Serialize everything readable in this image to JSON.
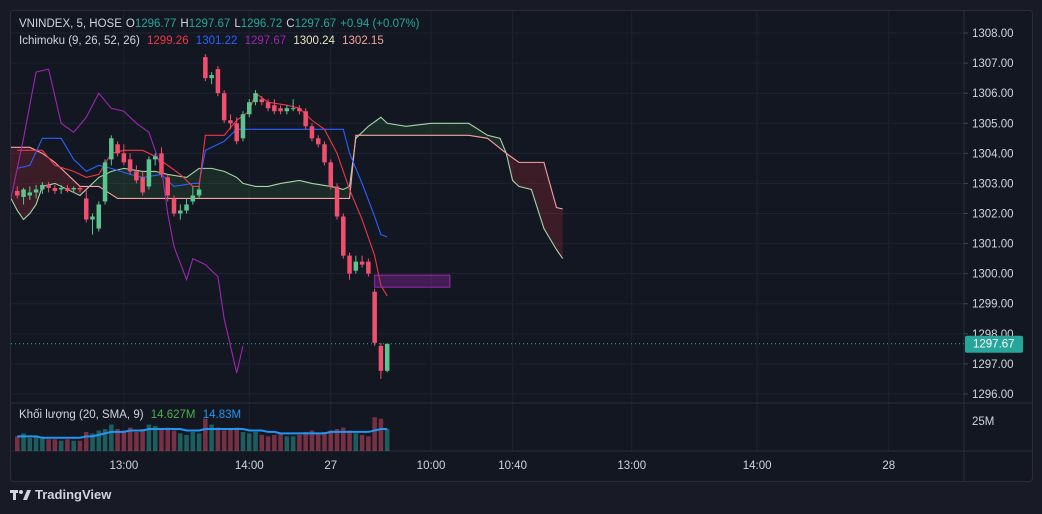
{
  "legend": {
    "symbol": "VNINDEX, 5, HOSE",
    "open_label": "O",
    "open": "1296.77",
    "high_label": "H",
    "high": "1297.67",
    "low_label": "L",
    "low": "1296.72",
    "close_label": "C",
    "close": "1297.67",
    "change": "+0.94 (+0.07%)"
  },
  "ichimoku_legend": {
    "name": "Ichimoku (9, 26, 52, 26)",
    "v1": "1299.26",
    "v2": "1301.22",
    "v3": "1297.67",
    "v4": "1300.24",
    "v5": "1302.15"
  },
  "volume_legend": {
    "name": "Khối lượng (20, SMA, 9)",
    "v1": "14.627M",
    "v2": "14.83M"
  },
  "footer": {
    "brand": "TradingView"
  },
  "colors": {
    "up": "#26a69a",
    "up_candle": "#5cc58f",
    "down": "#f0506e",
    "tenkan": "#f23645",
    "kijun": "#2962ff",
    "chikou": "#9c27b0",
    "senkou_a": "#a5d6a7",
    "senkou_b": "#f7a1a1",
    "zone": "#9c27b0"
  },
  "chart_data": {
    "type": "candlestick",
    "y_ticks": [
      1308,
      1307,
      1306,
      1305,
      1304,
      1303,
      1302,
      1301,
      1300,
      1299,
      1298,
      1297,
      1296
    ],
    "y_tick_labels": [
      "1308.00",
      "1307.00",
      "1306.00",
      "1305.00",
      "1304.00",
      "1303.00",
      "1302.00",
      "1301.00",
      "1300.00",
      "1299.00",
      "1298.00",
      "1297.00",
      "1296.00"
    ],
    "ylim": [
      1295.7,
      1308.4
    ],
    "x_range_bars": [
      -1,
      151
    ],
    "x_labels": [
      {
        "bar": 17,
        "label": "13:00"
      },
      {
        "bar": 37,
        "label": "14:00"
      },
      {
        "bar": 50,
        "label": "27"
      },
      {
        "bar": 66,
        "label": "10:00"
      },
      {
        "bar": 79,
        "label": "10:40"
      },
      {
        "bar": 98,
        "label": "13:00"
      },
      {
        "bar": 118,
        "label": "14:00"
      },
      {
        "bar": 139,
        "label": "28"
      }
    ],
    "last_price_label": "1297.67",
    "last_price": 1297.67,
    "volume_axis_label": "25M",
    "volume_max": 30,
    "candles": [
      {
        "o": 1302.75,
        "h": 1302.9,
        "l": 1302.5,
        "c": 1302.6,
        "v": 10
      },
      {
        "o": 1302.55,
        "h": 1302.85,
        "l": 1302.3,
        "c": 1302.8,
        "v": 12
      },
      {
        "o": 1302.6,
        "h": 1302.9,
        "l": 1302.45,
        "c": 1302.7,
        "v": 9
      },
      {
        "o": 1302.7,
        "h": 1302.95,
        "l": 1302.5,
        "c": 1302.8,
        "v": 10
      },
      {
        "o": 1302.8,
        "h": 1303.05,
        "l": 1302.65,
        "c": 1302.95,
        "v": 9
      },
      {
        "o": 1302.95,
        "h": 1303.05,
        "l": 1302.7,
        "c": 1302.85,
        "v": 8
      },
      {
        "o": 1302.85,
        "h": 1302.95,
        "l": 1302.65,
        "c": 1302.75,
        "v": 8
      },
      {
        "o": 1302.8,
        "h": 1302.95,
        "l": 1302.65,
        "c": 1302.85,
        "v": 7
      },
      {
        "o": 1302.85,
        "h": 1302.95,
        "l": 1302.7,
        "c": 1302.75,
        "v": 8
      },
      {
        "o": 1302.8,
        "h": 1302.9,
        "l": 1302.7,
        "c": 1302.85,
        "v": 7
      },
      {
        "o": 1302.85,
        "h": 1302.9,
        "l": 1302.7,
        "c": 1302.8,
        "v": 7
      },
      {
        "o": 1302.5,
        "h": 1302.8,
        "l": 1301.7,
        "c": 1301.8,
        "v": 13
      },
      {
        "o": 1301.8,
        "h": 1302.0,
        "l": 1301.3,
        "c": 1301.9,
        "v": 12
      },
      {
        "o": 1301.5,
        "h": 1302.4,
        "l": 1301.4,
        "c": 1302.3,
        "v": 14
      },
      {
        "o": 1302.4,
        "h": 1303.8,
        "l": 1302.3,
        "c": 1303.7,
        "v": 15
      },
      {
        "o": 1303.8,
        "h": 1304.6,
        "l": 1303.6,
        "c": 1304.5,
        "v": 18
      },
      {
        "o": 1304.3,
        "h": 1304.4,
        "l": 1303.9,
        "c": 1304.0,
        "v": 15
      },
      {
        "o": 1304.0,
        "h": 1304.3,
        "l": 1303.6,
        "c": 1303.7,
        "v": 14
      },
      {
        "o": 1303.8,
        "h": 1304.0,
        "l": 1303.3,
        "c": 1303.4,
        "v": 16
      },
      {
        "o": 1303.4,
        "h": 1303.6,
        "l": 1303.0,
        "c": 1303.1,
        "v": 13
      },
      {
        "o": 1303.2,
        "h": 1303.4,
        "l": 1302.6,
        "c": 1302.7,
        "v": 15
      },
      {
        "o": 1302.9,
        "h": 1303.9,
        "l": 1302.8,
        "c": 1303.8,
        "v": 18
      },
      {
        "o": 1303.8,
        "h": 1304.0,
        "l": 1303.6,
        "c": 1303.9,
        "v": 17
      },
      {
        "o": 1304.0,
        "h": 1304.2,
        "l": 1303.2,
        "c": 1303.3,
        "v": 15
      },
      {
        "o": 1303.2,
        "h": 1303.3,
        "l": 1302.4,
        "c": 1302.6,
        "v": 16
      },
      {
        "o": 1302.5,
        "h": 1302.6,
        "l": 1301.9,
        "c": 1302.0,
        "v": 14
      },
      {
        "o": 1302.0,
        "h": 1302.3,
        "l": 1301.8,
        "c": 1302.1,
        "v": 12
      },
      {
        "o": 1302.1,
        "h": 1302.5,
        "l": 1302.0,
        "c": 1302.3,
        "v": 11
      },
      {
        "o": 1302.4,
        "h": 1302.9,
        "l": 1302.3,
        "c": 1302.6,
        "v": 13
      },
      {
        "o": 1302.6,
        "h": 1302.9,
        "l": 1302.5,
        "c": 1302.8,
        "v": 12
      },
      {
        "o": 1307.2,
        "h": 1307.3,
        "l": 1306.4,
        "c": 1306.5,
        "v": 22
      },
      {
        "o": 1306.5,
        "h": 1306.7,
        "l": 1306.3,
        "c": 1306.6,
        "v": 18
      },
      {
        "o": 1306.8,
        "h": 1306.9,
        "l": 1305.9,
        "c": 1306.0,
        "v": 16
      },
      {
        "o": 1306.0,
        "h": 1306.1,
        "l": 1305.0,
        "c": 1305.1,
        "v": 14
      },
      {
        "o": 1305.1,
        "h": 1305.3,
        "l": 1304.8,
        "c": 1305.0,
        "v": 15
      },
      {
        "o": 1305.0,
        "h": 1305.2,
        "l": 1304.3,
        "c": 1304.4,
        "v": 16
      },
      {
        "o": 1304.5,
        "h": 1305.4,
        "l": 1304.4,
        "c": 1305.3,
        "v": 13
      },
      {
        "o": 1305.3,
        "h": 1305.8,
        "l": 1305.2,
        "c": 1305.7,
        "v": 12
      },
      {
        "o": 1305.7,
        "h": 1306.1,
        "l": 1305.6,
        "c": 1306.0,
        "v": 13
      },
      {
        "o": 1305.8,
        "h": 1305.9,
        "l": 1305.6,
        "c": 1305.7,
        "v": 11
      },
      {
        "o": 1305.7,
        "h": 1305.8,
        "l": 1305.4,
        "c": 1305.5,
        "v": 10
      },
      {
        "o": 1305.6,
        "h": 1305.8,
        "l": 1305.3,
        "c": 1305.4,
        "v": 11
      },
      {
        "o": 1305.5,
        "h": 1305.6,
        "l": 1305.3,
        "c": 1305.4,
        "v": 12
      },
      {
        "o": 1305.4,
        "h": 1305.6,
        "l": 1305.3,
        "c": 1305.5,
        "v": 10
      },
      {
        "o": 1305.5,
        "h": 1305.8,
        "l": 1305.4,
        "c": 1305.5,
        "v": 10
      },
      {
        "o": 1305.5,
        "h": 1305.6,
        "l": 1305.3,
        "c": 1305.4,
        "v": 11
      },
      {
        "o": 1305.4,
        "h": 1305.5,
        "l": 1304.8,
        "c": 1304.9,
        "v": 13
      },
      {
        "o": 1304.9,
        "h": 1305.0,
        "l": 1304.4,
        "c": 1304.5,
        "v": 14
      },
      {
        "o": 1304.5,
        "h": 1304.6,
        "l": 1304.2,
        "c": 1304.3,
        "v": 12
      },
      {
        "o": 1304.3,
        "h": 1304.4,
        "l": 1303.6,
        "c": 1303.7,
        "v": 13
      },
      {
        "o": 1303.7,
        "h": 1303.8,
        "l": 1302.8,
        "c": 1302.9,
        "v": 14
      },
      {
        "o": 1302.9,
        "h": 1303.0,
        "l": 1301.8,
        "c": 1301.9,
        "v": 15
      },
      {
        "o": 1301.9,
        "h": 1302.0,
        "l": 1300.5,
        "c": 1300.6,
        "v": 16
      },
      {
        "o": 1300.6,
        "h": 1300.7,
        "l": 1299.8,
        "c": 1300.0,
        "v": 14
      },
      {
        "o": 1300.1,
        "h": 1300.6,
        "l": 1300.0,
        "c": 1300.4,
        "v": 12
      },
      {
        "o": 1300.4,
        "h": 1300.6,
        "l": 1300.2,
        "c": 1300.3,
        "v": 11
      },
      {
        "o": 1300.4,
        "h": 1300.5,
        "l": 1299.9,
        "c": 1300.0,
        "v": 10
      },
      {
        "o": 1299.4,
        "h": 1299.5,
        "l": 1297.6,
        "c": 1297.7,
        "v": 23
      },
      {
        "o": 1297.6,
        "h": 1297.7,
        "l": 1296.5,
        "c": 1296.77,
        "v": 22
      },
      {
        "o": 1296.77,
        "h": 1297.67,
        "l": 1296.72,
        "c": 1297.67,
        "v": 15
      }
    ],
    "candle_bars": [
      0,
      1,
      2,
      3,
      4,
      5,
      6,
      7,
      8,
      9,
      10,
      11,
      12,
      13,
      14,
      15,
      16,
      17,
      18,
      19,
      20,
      21,
      22,
      23,
      24,
      25,
      26,
      27,
      28,
      29,
      30,
      31,
      32,
      33,
      34,
      35,
      36,
      37,
      38,
      39,
      40,
      41,
      42,
      43,
      44,
      45,
      46,
      47,
      48,
      49,
      50,
      51,
      52,
      53,
      54,
      55,
      56,
      57,
      58,
      59
    ],
    "volume_sma": [
      10,
      10,
      10,
      10,
      9,
      9,
      9,
      9,
      9,
      9,
      9,
      10,
      10,
      11,
      12,
      13,
      13,
      13,
      14,
      14,
      14,
      15,
      15,
      15,
      15,
      15,
      15,
      14,
      14,
      14,
      15,
      15,
      15,
      15,
      15,
      15,
      15,
      14,
      14,
      14,
      13,
      13,
      12,
      12,
      12,
      12,
      12,
      12,
      12,
      12,
      13,
      13,
      13,
      13,
      13,
      13,
      13,
      14,
      15,
      15
    ],
    "tenkan": [
      [
        0,
        1304.1
      ],
      [
        4,
        1304.1
      ],
      [
        6,
        1303.6
      ],
      [
        9,
        1303.4
      ],
      [
        11,
        1303.2
      ],
      [
        13,
        1303.3
      ],
      [
        15,
        1304.0
      ],
      [
        17,
        1304.1
      ],
      [
        20,
        1304.1
      ],
      [
        22,
        1303.9
      ],
      [
        24,
        1303.6
      ],
      [
        26,
        1303.3
      ],
      [
        28,
        1302.9
      ],
      [
        29,
        1302.9
      ],
      [
        30,
        1304.6
      ],
      [
        33,
        1304.6
      ],
      [
        35,
        1305.1
      ],
      [
        37,
        1305.4
      ],
      [
        38,
        1306.0
      ],
      [
        40,
        1305.7
      ],
      [
        43,
        1305.6
      ],
      [
        45,
        1305.5
      ],
      [
        47,
        1305.1
      ],
      [
        49,
        1304.8
      ],
      [
        51,
        1304.0
      ],
      [
        53,
        1302.8
      ],
      [
        55,
        1301.8
      ],
      [
        57,
        1300.6
      ],
      [
        58,
        1299.6
      ],
      [
        59,
        1299.26
      ]
    ],
    "kijun": [
      [
        0,
        1303.5
      ],
      [
        2,
        1303.6
      ],
      [
        4,
        1304.5
      ],
      [
        7,
        1304.5
      ],
      [
        9,
        1303.8
      ],
      [
        11,
        1303.4
      ],
      [
        13,
        1303.6
      ],
      [
        15,
        1303.5
      ],
      [
        18,
        1303.3
      ],
      [
        20,
        1303.2
      ],
      [
        23,
        1303.3
      ],
      [
        25,
        1302.9
      ],
      [
        28,
        1303.0
      ],
      [
        29,
        1303.0
      ],
      [
        30,
        1304.1
      ],
      [
        33,
        1304.4
      ],
      [
        35,
        1304.8
      ],
      [
        38,
        1304.8
      ],
      [
        44,
        1304.8
      ],
      [
        50,
        1304.8
      ],
      [
        52,
        1304.8
      ],
      [
        53,
        1304.0
      ],
      [
        55,
        1303.0
      ],
      [
        57,
        1301.9
      ],
      [
        58,
        1301.3
      ],
      [
        59,
        1301.22
      ]
    ],
    "chikou": [
      [
        -1,
        1302.5
      ],
      [
        1,
        1304.5
      ],
      [
        3,
        1306.7
      ],
      [
        5,
        1306.8
      ],
      [
        7,
        1305.0
      ],
      [
        9,
        1304.7
      ],
      [
        11,
        1305.2
      ],
      [
        13,
        1306.0
      ],
      [
        15,
        1305.5
      ],
      [
        17,
        1305.4
      ],
      [
        19,
        1305.0
      ],
      [
        21,
        1304.7
      ],
      [
        23,
        1303.5
      ],
      [
        24,
        1302.0
      ],
      [
        25,
        1300.9
      ],
      [
        27,
        1299.8
      ],
      [
        28,
        1300.5
      ],
      [
        30,
        1300.3
      ],
      [
        32,
        1299.9
      ],
      [
        33,
        1298.5
      ],
      [
        34,
        1297.6
      ],
      [
        35,
        1296.7
      ],
      [
        36,
        1297.6
      ]
    ],
    "senkou_a": [
      [
        -1,
        1302.5
      ],
      [
        0,
        1302.1
      ],
      [
        1,
        1301.8
      ],
      [
        2,
        1302.0
      ],
      [
        3,
        1302.3
      ],
      [
        4,
        1302.9
      ],
      [
        6,
        1303.0
      ],
      [
        8,
        1302.8
      ],
      [
        10,
        1302.6
      ],
      [
        11,
        1302.8
      ],
      [
        13,
        1303.2
      ],
      [
        15,
        1303.4
      ],
      [
        17,
        1303.5
      ],
      [
        20,
        1303.4
      ],
      [
        22,
        1303.4
      ],
      [
        24,
        1303.3
      ],
      [
        27,
        1303.2
      ],
      [
        29,
        1303.5
      ],
      [
        31,
        1303.5
      ],
      [
        33,
        1303.4
      ],
      [
        35,
        1303.2
      ],
      [
        36,
        1303.0
      ],
      [
        38,
        1302.9
      ],
      [
        40,
        1302.9
      ],
      [
        42,
        1303.0
      ],
      [
        45,
        1303.1
      ],
      [
        47,
        1303.0
      ],
      [
        50,
        1302.9
      ],
      [
        52,
        1302.8
      ],
      [
        53,
        1302.9
      ],
      [
        54,
        1304.5
      ],
      [
        56,
        1304.9
      ],
      [
        58,
        1305.2
      ],
      [
        59,
        1305.0
      ],
      [
        62,
        1304.9
      ],
      [
        66,
        1305.0
      ],
      [
        70,
        1305.0
      ],
      [
        72,
        1305.0
      ],
      [
        75,
        1304.6
      ],
      [
        77,
        1304.5
      ],
      [
        78,
        1304.0
      ],
      [
        79,
        1303.1
      ],
      [
        80,
        1302.9
      ],
      [
        82,
        1302.8
      ],
      [
        84,
        1301.5
      ],
      [
        86,
        1300.8
      ],
      [
        87,
        1300.5
      ]
    ],
    "senkou_b": [
      [
        -1,
        1304.2
      ],
      [
        2,
        1304.2
      ],
      [
        4,
        1304.0
      ],
      [
        6,
        1303.7
      ],
      [
        9,
        1303.1
      ],
      [
        10,
        1302.9
      ],
      [
        13,
        1302.9
      ],
      [
        16,
        1302.5
      ],
      [
        20,
        1302.5
      ],
      [
        25,
        1302.5
      ],
      [
        30,
        1302.5
      ],
      [
        35,
        1302.5
      ],
      [
        40,
        1302.5
      ],
      [
        45,
        1302.5
      ],
      [
        50,
        1302.5
      ],
      [
        53,
        1302.5
      ],
      [
        54,
        1304.6
      ],
      [
        60,
        1304.6
      ],
      [
        66,
        1304.6
      ],
      [
        70,
        1304.6
      ],
      [
        72,
        1304.6
      ],
      [
        75,
        1304.5
      ],
      [
        78,
        1304.0
      ],
      [
        80,
        1303.7
      ],
      [
        82,
        1303.7
      ],
      [
        84,
        1303.7
      ],
      [
        86,
        1302.2
      ],
      [
        87,
        1302.15
      ]
    ],
    "zone": {
      "x0": 57,
      "x1": 69,
      "y_top": 1299.95,
      "y_bottom": 1299.55
    }
  }
}
